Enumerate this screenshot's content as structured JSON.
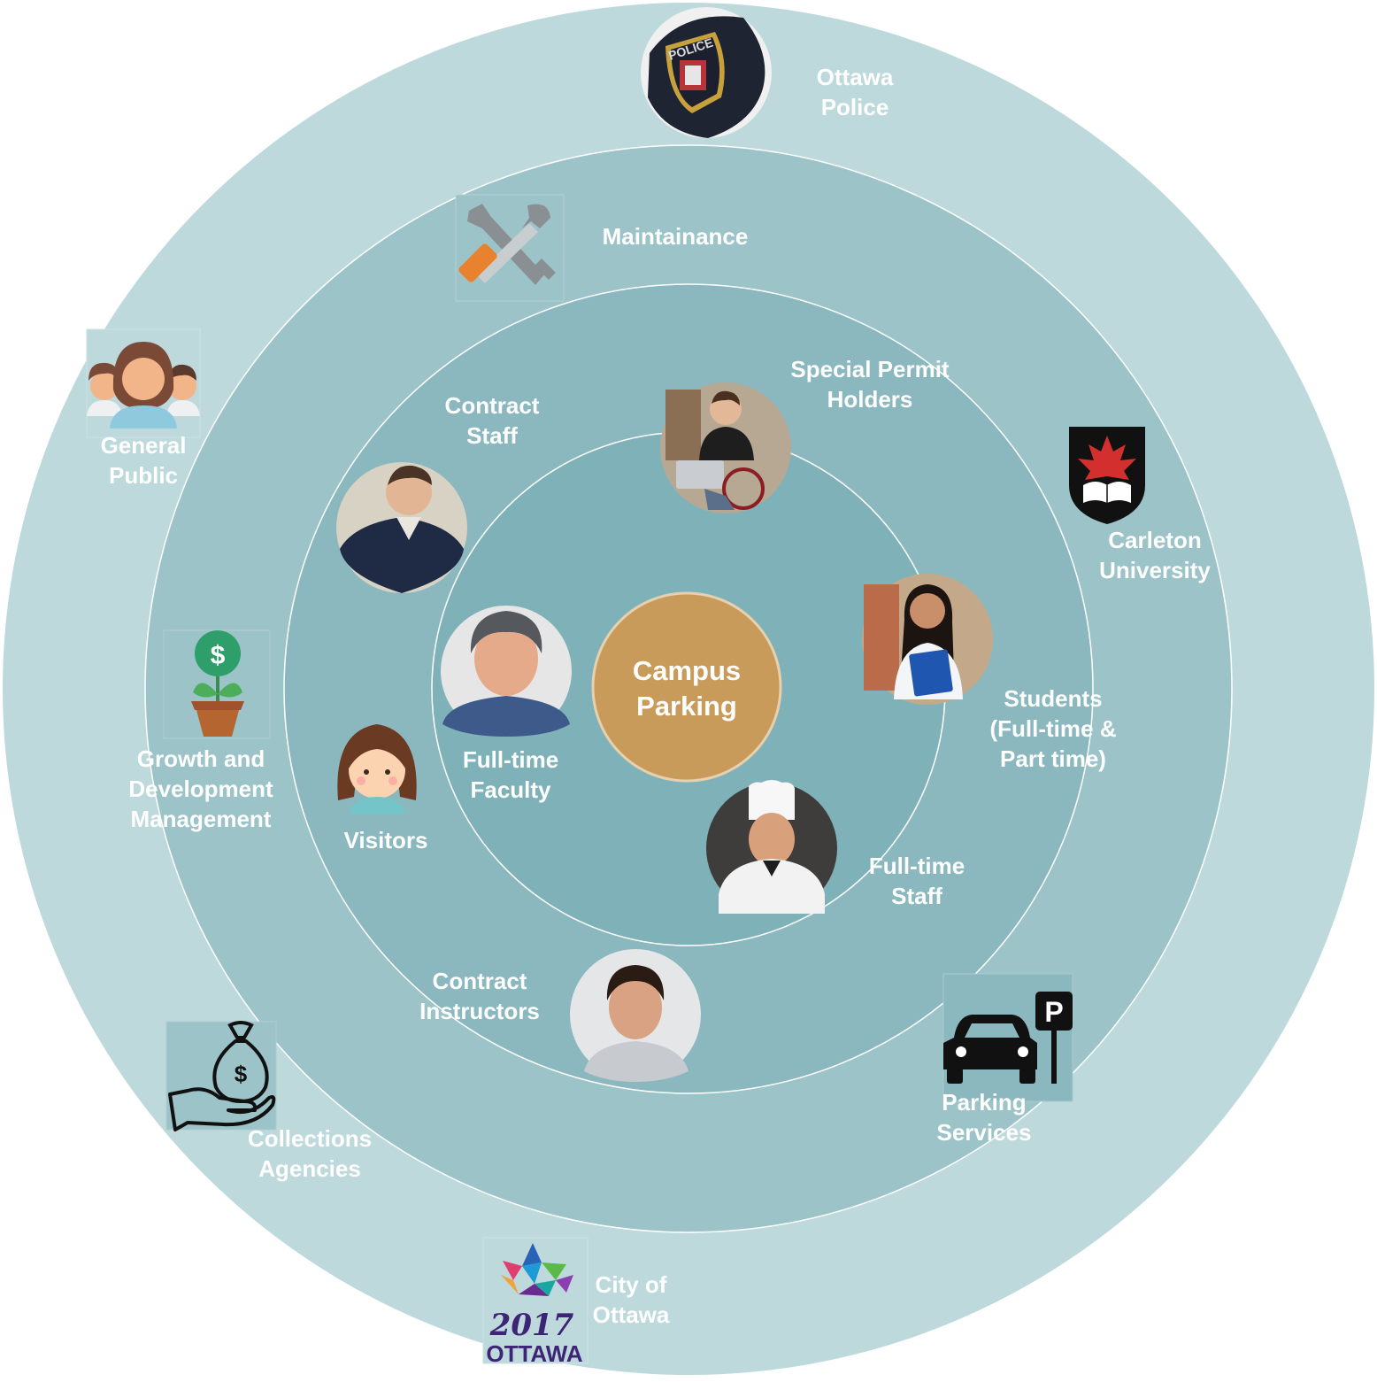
{
  "diagram": {
    "center": {
      "label": "Campus\nParking"
    },
    "colors": {
      "ring1": "#bdd9dc",
      "ring2": "#9bc3c8",
      "ring3": "#8ab8be",
      "ring4": "#7fb2b8",
      "center": "#c99b5b",
      "line": "#ffffff"
    },
    "stakeholders": {
      "ottawa_police": "Ottawa\nPolice",
      "maintainance": "Maintainance",
      "general_public": "General\nPublic",
      "carleton_university": "Carleton\nUniversity",
      "growth_development": "Growth and\nDevelopment\nManagement",
      "collections_agencies": "Collections\nAgencies",
      "parking_services": "Parking\nServices",
      "city_of_ottawa": "City of\nOttawa",
      "contract_staff": "Contract\nStaff",
      "special_permit_holders": "Special Permit\nHolders",
      "students": "Students\n(Full-time &\nPart time)",
      "visitors": "Visitors",
      "full_time_faculty": "Full-time\nFaculty",
      "full_time_staff": "Full-time\nStaff",
      "contract_instructors": "Contract\nInstructors"
    },
    "logos": {
      "police_patch_text": "POLICE",
      "parking_sign_text": "P",
      "dollar_sign": "$",
      "city_year": "2017",
      "city_wordmark": "OTTAWA"
    }
  }
}
